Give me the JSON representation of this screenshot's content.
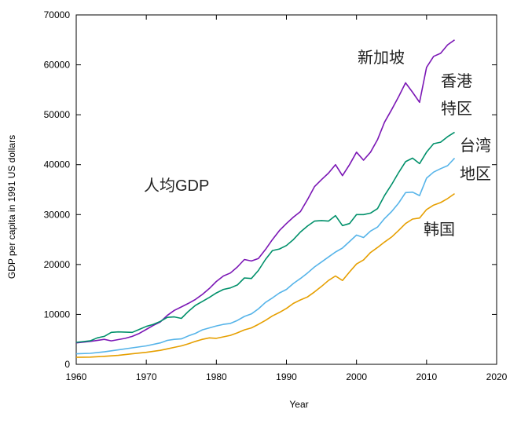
{
  "chart_data": {
    "type": "line",
    "title": "人均GDP",
    "xlabel": "Year",
    "ylabel": "GDP per capita in 1991 US dollars",
    "xlim": [
      1960,
      2020
    ],
    "ylim": [
      0,
      70000
    ],
    "x_ticks": [
      1960,
      1970,
      1980,
      1990,
      2000,
      2010,
      2020
    ],
    "y_ticks": [
      0,
      10000,
      20000,
      30000,
      40000,
      50000,
      60000,
      70000
    ],
    "grid": false,
    "legend": "none",
    "series": [
      {
        "name": "新加坡",
        "color": "#7b17b5",
        "label_lines": [
          "新加坡"
        ],
        "points": [
          [
            1960,
            4300
          ],
          [
            1962,
            4600
          ],
          [
            1964,
            5000
          ],
          [
            1965,
            4700
          ],
          [
            1967,
            5200
          ],
          [
            1968,
            5600
          ],
          [
            1969,
            6200
          ],
          [
            1970,
            7000
          ],
          [
            1971,
            7800
          ],
          [
            1972,
            8500
          ],
          [
            1973,
            9800
          ],
          [
            1974,
            10800
          ],
          [
            1975,
            11500
          ],
          [
            1976,
            12200
          ],
          [
            1977,
            13000
          ],
          [
            1978,
            14000
          ],
          [
            1979,
            15200
          ],
          [
            1980,
            16600
          ],
          [
            1981,
            17700
          ],
          [
            1982,
            18300
          ],
          [
            1983,
            19500
          ],
          [
            1984,
            21000
          ],
          [
            1985,
            20700
          ],
          [
            1986,
            21200
          ],
          [
            1987,
            23000
          ],
          [
            1988,
            25000
          ],
          [
            1989,
            26800
          ],
          [
            1990,
            28200
          ],
          [
            1991,
            29500
          ],
          [
            1992,
            30600
          ],
          [
            1993,
            33000
          ],
          [
            1994,
            35600
          ],
          [
            1995,
            37000
          ],
          [
            1996,
            38300
          ],
          [
            1997,
            40000
          ],
          [
            1998,
            37800
          ],
          [
            1999,
            40000
          ],
          [
            2000,
            42500
          ],
          [
            2001,
            40900
          ],
          [
            2002,
            42500
          ],
          [
            2003,
            45000
          ],
          [
            2004,
            48500
          ],
          [
            2005,
            51000
          ],
          [
            2006,
            53600
          ],
          [
            2007,
            56400
          ],
          [
            2008,
            54500
          ],
          [
            2009,
            52500
          ],
          [
            2010,
            59500
          ],
          [
            2011,
            61700
          ],
          [
            2012,
            62300
          ],
          [
            2013,
            64000
          ],
          [
            2014,
            65000
          ]
        ]
      },
      {
        "name": "香港特区",
        "color": "#00906a",
        "label_lines": [
          "香港",
          "特区"
        ],
        "points": [
          [
            1960,
            4400
          ],
          [
            1962,
            4700
          ],
          [
            1963,
            5300
          ],
          [
            1964,
            5600
          ],
          [
            1965,
            6400
          ],
          [
            1966,
            6500
          ],
          [
            1968,
            6400
          ],
          [
            1969,
            7000
          ],
          [
            1970,
            7600
          ],
          [
            1971,
            8000
          ],
          [
            1972,
            8600
          ],
          [
            1973,
            9400
          ],
          [
            1974,
            9500
          ],
          [
            1975,
            9200
          ],
          [
            1976,
            10600
          ],
          [
            1977,
            11800
          ],
          [
            1978,
            12600
          ],
          [
            1979,
            13400
          ],
          [
            1980,
            14300
          ],
          [
            1981,
            15000
          ],
          [
            1982,
            15300
          ],
          [
            1983,
            15900
          ],
          [
            1984,
            17300
          ],
          [
            1985,
            17200
          ],
          [
            1986,
            18800
          ],
          [
            1987,
            21000
          ],
          [
            1988,
            22800
          ],
          [
            1989,
            23100
          ],
          [
            1990,
            23800
          ],
          [
            1991,
            25000
          ],
          [
            1992,
            26500
          ],
          [
            1993,
            27700
          ],
          [
            1994,
            28700
          ],
          [
            1995,
            28800
          ],
          [
            1996,
            28700
          ],
          [
            1997,
            29800
          ],
          [
            1998,
            27800
          ],
          [
            1999,
            28200
          ],
          [
            2000,
            30000
          ],
          [
            2001,
            30000
          ],
          [
            2002,
            30300
          ],
          [
            2003,
            31200
          ],
          [
            2004,
            33800
          ],
          [
            2005,
            36000
          ],
          [
            2006,
            38400
          ],
          [
            2007,
            40600
          ],
          [
            2008,
            41300
          ],
          [
            2009,
            40200
          ],
          [
            2010,
            42500
          ],
          [
            2011,
            44200
          ],
          [
            2012,
            44500
          ],
          [
            2013,
            45600
          ],
          [
            2014,
            46500
          ]
        ]
      },
      {
        "name": "台湾地区",
        "color": "#56b4e9",
        "label_lines": [
          "台湾",
          "地区"
        ],
        "points": [
          [
            1960,
            2100
          ],
          [
            1962,
            2200
          ],
          [
            1964,
            2500
          ],
          [
            1966,
            2900
          ],
          [
            1968,
            3300
          ],
          [
            1970,
            3700
          ],
          [
            1972,
            4300
          ],
          [
            1973,
            4800
          ],
          [
            1974,
            5000
          ],
          [
            1975,
            5100
          ],
          [
            1976,
            5700
          ],
          [
            1977,
            6200
          ],
          [
            1978,
            6900
          ],
          [
            1979,
            7300
          ],
          [
            1980,
            7700
          ],
          [
            1981,
            8000
          ],
          [
            1982,
            8200
          ],
          [
            1983,
            8800
          ],
          [
            1984,
            9600
          ],
          [
            1985,
            10100
          ],
          [
            1986,
            11100
          ],
          [
            1987,
            12400
          ],
          [
            1988,
            13300
          ],
          [
            1989,
            14300
          ],
          [
            1990,
            15000
          ],
          [
            1991,
            16200
          ],
          [
            1992,
            17200
          ],
          [
            1993,
            18300
          ],
          [
            1994,
            19500
          ],
          [
            1995,
            20500
          ],
          [
            1996,
            21500
          ],
          [
            1997,
            22500
          ],
          [
            1998,
            23300
          ],
          [
            1999,
            24600
          ],
          [
            2000,
            25900
          ],
          [
            2001,
            25400
          ],
          [
            2002,
            26700
          ],
          [
            2003,
            27500
          ],
          [
            2004,
            29200
          ],
          [
            2005,
            30600
          ],
          [
            2006,
            32300
          ],
          [
            2007,
            34400
          ],
          [
            2008,
            34500
          ],
          [
            2009,
            33800
          ],
          [
            2010,
            37300
          ],
          [
            2011,
            38500
          ],
          [
            2012,
            39200
          ],
          [
            2013,
            39800
          ],
          [
            2014,
            41300
          ]
        ]
      },
      {
        "name": "韩国",
        "color": "#e69f00",
        "label_lines": [
          "韩国"
        ],
        "points": [
          [
            1960,
            1400
          ],
          [
            1962,
            1450
          ],
          [
            1964,
            1600
          ],
          [
            1966,
            1800
          ],
          [
            1968,
            2100
          ],
          [
            1970,
            2400
          ],
          [
            1972,
            2800
          ],
          [
            1973,
            3100
          ],
          [
            1974,
            3400
          ],
          [
            1975,
            3700
          ],
          [
            1976,
            4100
          ],
          [
            1977,
            4600
          ],
          [
            1978,
            5000
          ],
          [
            1979,
            5300
          ],
          [
            1980,
            5200
          ],
          [
            1981,
            5500
          ],
          [
            1982,
            5800
          ],
          [
            1983,
            6300
          ],
          [
            1984,
            6900
          ],
          [
            1985,
            7300
          ],
          [
            1986,
            8000
          ],
          [
            1987,
            8800
          ],
          [
            1988,
            9700
          ],
          [
            1989,
            10400
          ],
          [
            1990,
            11200
          ],
          [
            1991,
            12200
          ],
          [
            1992,
            12900
          ],
          [
            1993,
            13500
          ],
          [
            1994,
            14500
          ],
          [
            1995,
            15600
          ],
          [
            1996,
            16800
          ],
          [
            1997,
            17700
          ],
          [
            1998,
            16800
          ],
          [
            1999,
            18500
          ],
          [
            2000,
            20100
          ],
          [
            2001,
            20900
          ],
          [
            2002,
            22400
          ],
          [
            2003,
            23400
          ],
          [
            2004,
            24500
          ],
          [
            2005,
            25500
          ],
          [
            2006,
            26800
          ],
          [
            2007,
            28200
          ],
          [
            2008,
            29100
          ],
          [
            2009,
            29300
          ],
          [
            2010,
            31000
          ],
          [
            2011,
            31900
          ],
          [
            2012,
            32400
          ],
          [
            2013,
            33200
          ],
          [
            2014,
            34200
          ]
        ]
      }
    ]
  }
}
